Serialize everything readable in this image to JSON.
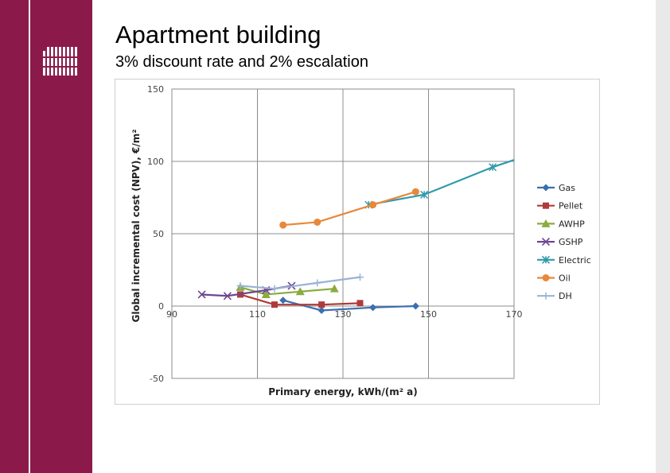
{
  "slide": {
    "title": "Apartment building",
    "subtitle": "3% discount rate and 2% escalation",
    "accent_color": "#8b1a4a",
    "logo_icon": "grid-logo-icon"
  },
  "chart_data": {
    "type": "line",
    "xlabel": "Primary energy, kWh/(m² a)",
    "ylabel": "Global incremental cost (NPV), €/m²",
    "xlim": [
      90,
      170
    ],
    "ylim": [
      -50,
      150
    ],
    "x_ticks": [
      90,
      110,
      130,
      150,
      170
    ],
    "y_ticks": [
      150,
      100,
      50,
      0,
      -50
    ],
    "grid": true,
    "legend_position": "right",
    "series": [
      {
        "name": "Gas",
        "color": "#3a6fb0",
        "marker": "diamond",
        "points": [
          [
            116,
            4
          ],
          [
            125,
            -3
          ],
          [
            137,
            -1
          ],
          [
            147,
            0
          ]
        ]
      },
      {
        "name": "Pellet",
        "color": "#b03a3a",
        "marker": "square",
        "points": [
          [
            106,
            8
          ],
          [
            114,
            1
          ],
          [
            125,
            1
          ],
          [
            134,
            2
          ]
        ]
      },
      {
        "name": "AWHP",
        "color": "#8aab3e",
        "marker": "triangle",
        "points": [
          [
            106,
            13
          ],
          [
            112,
            8
          ],
          [
            120,
            10
          ],
          [
            128,
            12
          ]
        ]
      },
      {
        "name": "GSHP",
        "color": "#6e4690",
        "marker": "x",
        "points": [
          [
            97,
            8
          ],
          [
            103,
            7
          ],
          [
            112,
            11
          ],
          [
            118,
            14
          ]
        ]
      },
      {
        "name": "Electric",
        "color": "#2f99ad",
        "marker": "star",
        "points": [
          [
            136,
            70
          ],
          [
            149,
            77
          ],
          [
            165,
            96
          ],
          [
            170,
            101
          ]
        ]
      },
      {
        "name": "Oil",
        "color": "#e8883a",
        "marker": "circle",
        "points": [
          [
            116,
            56
          ],
          [
            124,
            58
          ],
          [
            137,
            70
          ],
          [
            147,
            79
          ]
        ]
      },
      {
        "name": "DH",
        "color": "#9ab3d6",
        "marker": "plus",
        "points": [
          [
            106,
            14
          ],
          [
            114,
            12
          ],
          [
            124,
            16
          ],
          [
            134,
            20
          ]
        ]
      }
    ]
  }
}
